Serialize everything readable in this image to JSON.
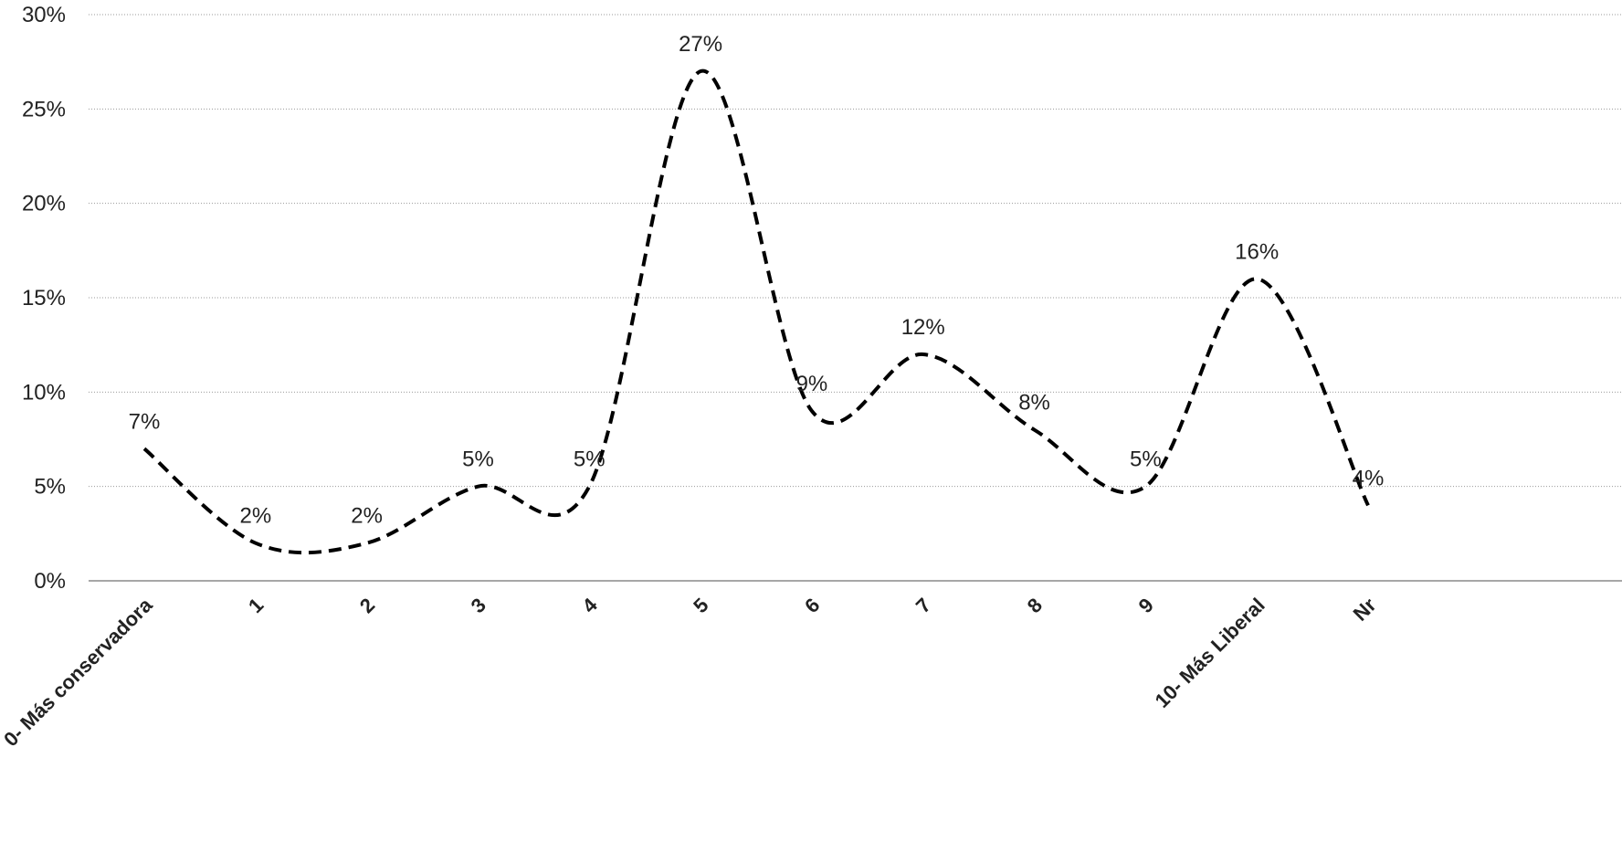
{
  "chart_data": {
    "type": "line",
    "categories": [
      "0- Más conservadora",
      "1",
      "2",
      "3",
      "4",
      "5",
      "6",
      "7",
      "8",
      "9",
      "10- Más Liberal",
      "Nr"
    ],
    "series": [
      {
        "values": [
          7,
          2,
          2,
          5,
          5,
          27,
          9,
          12,
          8,
          5,
          16,
          4
        ],
        "data_labels": [
          "7%",
          "2%",
          "2%",
          "5%",
          "5%",
          "27%",
          "9%",
          "12%",
          "8%",
          "5%",
          "16%",
          "4%"
        ],
        "color": "#000000",
        "line_style": "dashed",
        "smooth": true
      }
    ],
    "y_ticks": [
      "0%",
      "5%",
      "10%",
      "15%",
      "20%",
      "25%",
      "30%"
    ],
    "ylim": [
      0,
      30
    ],
    "grid": "horizontal dotted",
    "legend": "none"
  }
}
